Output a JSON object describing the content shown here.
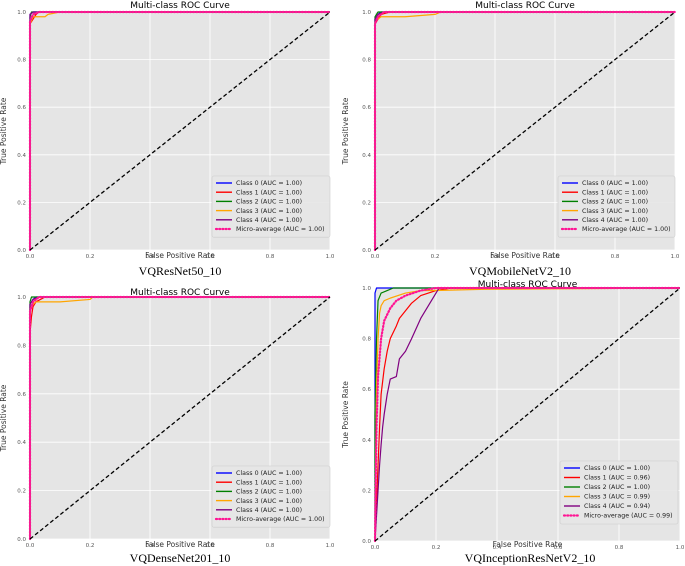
{
  "chart_data": [
    {
      "type": "line",
      "title": "Multi-class ROC Curve",
      "caption": "VQResNet50_10",
      "xlabel": "False Positive Rate",
      "ylabel": "True Positive Rate",
      "xlim": [
        0,
        1
      ],
      "ylim": [
        0,
        1
      ],
      "xticks": [
        "0.0",
        "0.2",
        "0.4",
        "0.6",
        "0.8",
        "1.0"
      ],
      "yticks": [
        "0.0",
        "0.2",
        "0.4",
        "0.6",
        "0.8",
        "1.0"
      ],
      "grid": true,
      "legend_position": "bottom-right",
      "series": [
        {
          "name": "Class 0 (AUC = 1.00)",
          "color": "#0000ff",
          "style": "solid",
          "x": [
            0,
            0,
            0.01,
            1
          ],
          "y": [
            0,
            0.99,
            1,
            1
          ]
        },
        {
          "name": "Class 1 (AUC = 1.00)",
          "color": "#ff0000",
          "style": "solid",
          "x": [
            0,
            0,
            0.01,
            0.02,
            0.03,
            1
          ],
          "y": [
            0,
            0.95,
            0.97,
            0.99,
            1,
            1
          ]
        },
        {
          "name": "Class 2 (AUC = 1.00)",
          "color": "#008000",
          "style": "solid",
          "x": [
            0,
            0,
            0.005,
            1
          ],
          "y": [
            0,
            0.98,
            1,
            1
          ]
        },
        {
          "name": "Class 3 (AUC = 1.00)",
          "color": "#ffa500",
          "style": "solid",
          "x": [
            0,
            0,
            0.01,
            0.05,
            0.06,
            0.1,
            1
          ],
          "y": [
            0,
            0.95,
            0.98,
            0.98,
            0.99,
            1,
            1
          ]
        },
        {
          "name": "Class 4 (AUC = 1.00)",
          "color": "#800080",
          "style": "solid",
          "x": [
            0,
            0,
            0.01,
            1
          ],
          "y": [
            0,
            0.99,
            1,
            1
          ]
        },
        {
          "name": "Micro-average (AUC = 1.00)",
          "color": "#ff1493",
          "style": "dotted",
          "x": [
            0,
            0,
            0.01,
            0.03,
            1
          ],
          "y": [
            0,
            0.96,
            0.99,
            1,
            1
          ]
        },
        {
          "name": "",
          "color": "#000000",
          "style": "dashed",
          "x": [
            0,
            1
          ],
          "y": [
            0,
            1
          ]
        }
      ]
    },
    {
      "type": "line",
      "title": "Multi-class ROC Curve",
      "caption": "VQMobileNetV2_10",
      "xlabel": "False Positive Rate",
      "ylabel": "True Positive Rate",
      "xlim": [
        0,
        1
      ],
      "ylim": [
        0,
        1
      ],
      "xticks": [
        "0.0",
        "0.2",
        "0.4",
        "0.6",
        "0.8",
        "1.0"
      ],
      "yticks": [
        "0.0",
        "0.2",
        "0.4",
        "0.6",
        "0.8",
        "1.0"
      ],
      "grid": true,
      "legend_position": "bottom-right",
      "series": [
        {
          "name": "Class 0 (AUC = 1.00)",
          "color": "#0000ff",
          "style": "solid",
          "x": [
            0,
            0,
            0.01,
            0.02,
            1
          ],
          "y": [
            0,
            0.97,
            0.99,
            1,
            1
          ]
        },
        {
          "name": "Class 1 (AUC = 1.00)",
          "color": "#ff0000",
          "style": "solid",
          "x": [
            0,
            0,
            0.01,
            0.02,
            0.05,
            1
          ],
          "y": [
            0,
            0.95,
            0.97,
            0.99,
            1,
            1
          ]
        },
        {
          "name": "Class 2 (AUC = 1.00)",
          "color": "#008000",
          "style": "solid",
          "x": [
            0,
            0,
            0.01,
            1
          ],
          "y": [
            0,
            0.98,
            1,
            1
          ]
        },
        {
          "name": "Class 3 (AUC = 1.00)",
          "color": "#ffa500",
          "style": "solid",
          "x": [
            0,
            0,
            0.02,
            0.1,
            0.2,
            0.22,
            1
          ],
          "y": [
            0,
            0.96,
            0.98,
            0.98,
            0.99,
            1,
            1
          ]
        },
        {
          "name": "Class 4 (AUC = 1.00)",
          "color": "#800080",
          "style": "solid",
          "x": [
            0,
            0,
            0.01,
            0.03,
            1
          ],
          "y": [
            0,
            0.97,
            0.99,
            1,
            1
          ]
        },
        {
          "name": "Micro-average (AUC = 1.00)",
          "color": "#ff1493",
          "style": "dotted",
          "x": [
            0,
            0,
            0.01,
            0.03,
            1
          ],
          "y": [
            0,
            0.95,
            0.98,
            1,
            1
          ]
        },
        {
          "name": "",
          "color": "#000000",
          "style": "dashed",
          "x": [
            0,
            1
          ],
          "y": [
            0,
            1
          ]
        }
      ]
    },
    {
      "type": "line",
      "title": "Multi-class ROC Curve",
      "caption": "VQDenseNet201_10",
      "xlabel": "False Positive Rate",
      "ylabel": "True Positive Rate",
      "xlim": [
        0,
        1
      ],
      "ylim": [
        0,
        1
      ],
      "xticks": [
        "0.0",
        "0.2",
        "0.4",
        "0.6",
        "0.8",
        "1.0"
      ],
      "yticks": [
        "0.0",
        "0.2",
        "0.4",
        "0.6",
        "0.8",
        "1.0"
      ],
      "grid": true,
      "legend_position": "bottom-right",
      "series": [
        {
          "name": "Class 0 (AUC = 1.00)",
          "color": "#0000ff",
          "style": "solid",
          "x": [
            0,
            0,
            0.01,
            0.02,
            1
          ],
          "y": [
            0,
            0.97,
            0.99,
            1,
            1
          ]
        },
        {
          "name": "Class 1 (AUC = 1.00)",
          "color": "#ff0000",
          "style": "solid",
          "x": [
            0,
            0,
            0.005,
            0.01,
            0.02,
            0.05,
            1
          ],
          "y": [
            0,
            0.85,
            0.92,
            0.96,
            0.98,
            1,
            1
          ]
        },
        {
          "name": "Class 2 (AUC = 1.00)",
          "color": "#008000",
          "style": "solid",
          "x": [
            0,
            0,
            0.005,
            1
          ],
          "y": [
            0,
            0.98,
            1,
            1
          ]
        },
        {
          "name": "Class 3 (AUC = 1.00)",
          "color": "#ffa500",
          "style": "solid",
          "x": [
            0,
            0,
            0.02,
            0.1,
            0.2,
            0.21,
            1
          ],
          "y": [
            0,
            0.96,
            0.98,
            0.98,
            0.99,
            1,
            1
          ]
        },
        {
          "name": "Class 4 (AUC = 1.00)",
          "color": "#800080",
          "style": "solid",
          "x": [
            0,
            0,
            0.01,
            0.03,
            1
          ],
          "y": [
            0,
            0.97,
            0.99,
            1,
            1
          ]
        },
        {
          "name": "Micro-average (AUC = 1.00)",
          "color": "#ff1493",
          "style": "dotted",
          "x": [
            0,
            0,
            0.01,
            0.03,
            1
          ],
          "y": [
            0,
            0.94,
            0.98,
            1,
            1
          ]
        },
        {
          "name": "",
          "color": "#000000",
          "style": "dashed",
          "x": [
            0,
            1
          ],
          "y": [
            0,
            1
          ]
        }
      ]
    },
    {
      "type": "line",
      "title": "Multi-class ROC Curve",
      "caption": "VQInceptionResNetV2_10",
      "xlabel": "False Positive Rate",
      "ylabel": "True Positive Rate",
      "xlim": [
        0,
        1
      ],
      "ylim": [
        0,
        1
      ],
      "xticks": [
        "0.0",
        "0.2",
        "0.4",
        "0.6",
        "0.8",
        "1.0"
      ],
      "yticks": [
        "0.0",
        "0.2",
        "0.4",
        "0.6",
        "0.8",
        "1.0"
      ],
      "grid": true,
      "legend_position": "bottom-right",
      "series": [
        {
          "name": "Class 0 (AUC = 1.00)",
          "color": "#0000ff",
          "style": "solid",
          "x": [
            0,
            0,
            0.005,
            1
          ],
          "y": [
            0,
            0.98,
            1,
            1
          ]
        },
        {
          "name": "Class 1 (AUC = 0.96)",
          "color": "#ff0000",
          "style": "solid",
          "x": [
            0,
            0.005,
            0.01,
            0.015,
            0.02,
            0.03,
            0.04,
            0.05,
            0.07,
            0.08,
            0.1,
            0.12,
            0.15,
            0.2,
            0.25,
            1
          ],
          "y": [
            0,
            0.15,
            0.3,
            0.45,
            0.58,
            0.68,
            0.75,
            0.8,
            0.85,
            0.88,
            0.91,
            0.94,
            0.97,
            0.99,
            1,
            1
          ]
        },
        {
          "name": "Class 2 (AUC = 1.00)",
          "color": "#008000",
          "style": "solid",
          "x": [
            0,
            0,
            0.005,
            0.01,
            0.02,
            0.04,
            0.06,
            1
          ],
          "y": [
            0,
            0.5,
            0.8,
            0.95,
            0.98,
            0.99,
            1,
            1
          ]
        },
        {
          "name": "Class 3 (AUC = 0.99)",
          "color": "#ffa500",
          "style": "solid",
          "x": [
            0,
            0.005,
            0.01,
            0.015,
            0.02,
            0.03,
            0.05,
            0.1,
            0.15,
            0.2,
            0.36,
            1
          ],
          "y": [
            0,
            0.6,
            0.8,
            0.9,
            0.93,
            0.95,
            0.96,
            0.98,
            0.99,
            0.99,
            0.995,
            1
          ]
        },
        {
          "name": "Class 4 (AUC = 0.94)",
          "color": "#800080",
          "style": "solid",
          "x": [
            0,
            0.005,
            0.01,
            0.015,
            0.02,
            0.025,
            0.03,
            0.04,
            0.05,
            0.07,
            0.08,
            0.1,
            0.12,
            0.15,
            0.2,
            0.21,
            1
          ],
          "y": [
            0,
            0.1,
            0.2,
            0.3,
            0.38,
            0.45,
            0.5,
            0.58,
            0.64,
            0.65,
            0.72,
            0.75,
            0.8,
            0.88,
            0.98,
            1,
            1
          ]
        },
        {
          "name": "Micro-average (AUC = 0.99)",
          "color": "#ff1493",
          "style": "dotted",
          "x": [
            0,
            0.002,
            0.005,
            0.01,
            0.02,
            0.03,
            0.05,
            0.07,
            0.1,
            0.15,
            0.2,
            1
          ],
          "y": [
            0,
            0.2,
            0.45,
            0.65,
            0.8,
            0.87,
            0.92,
            0.95,
            0.97,
            0.99,
            1,
            1
          ]
        },
        {
          "name": "",
          "color": "#000000",
          "style": "dashed",
          "x": [
            0,
            1
          ],
          "y": [
            0,
            1
          ]
        }
      ]
    }
  ]
}
